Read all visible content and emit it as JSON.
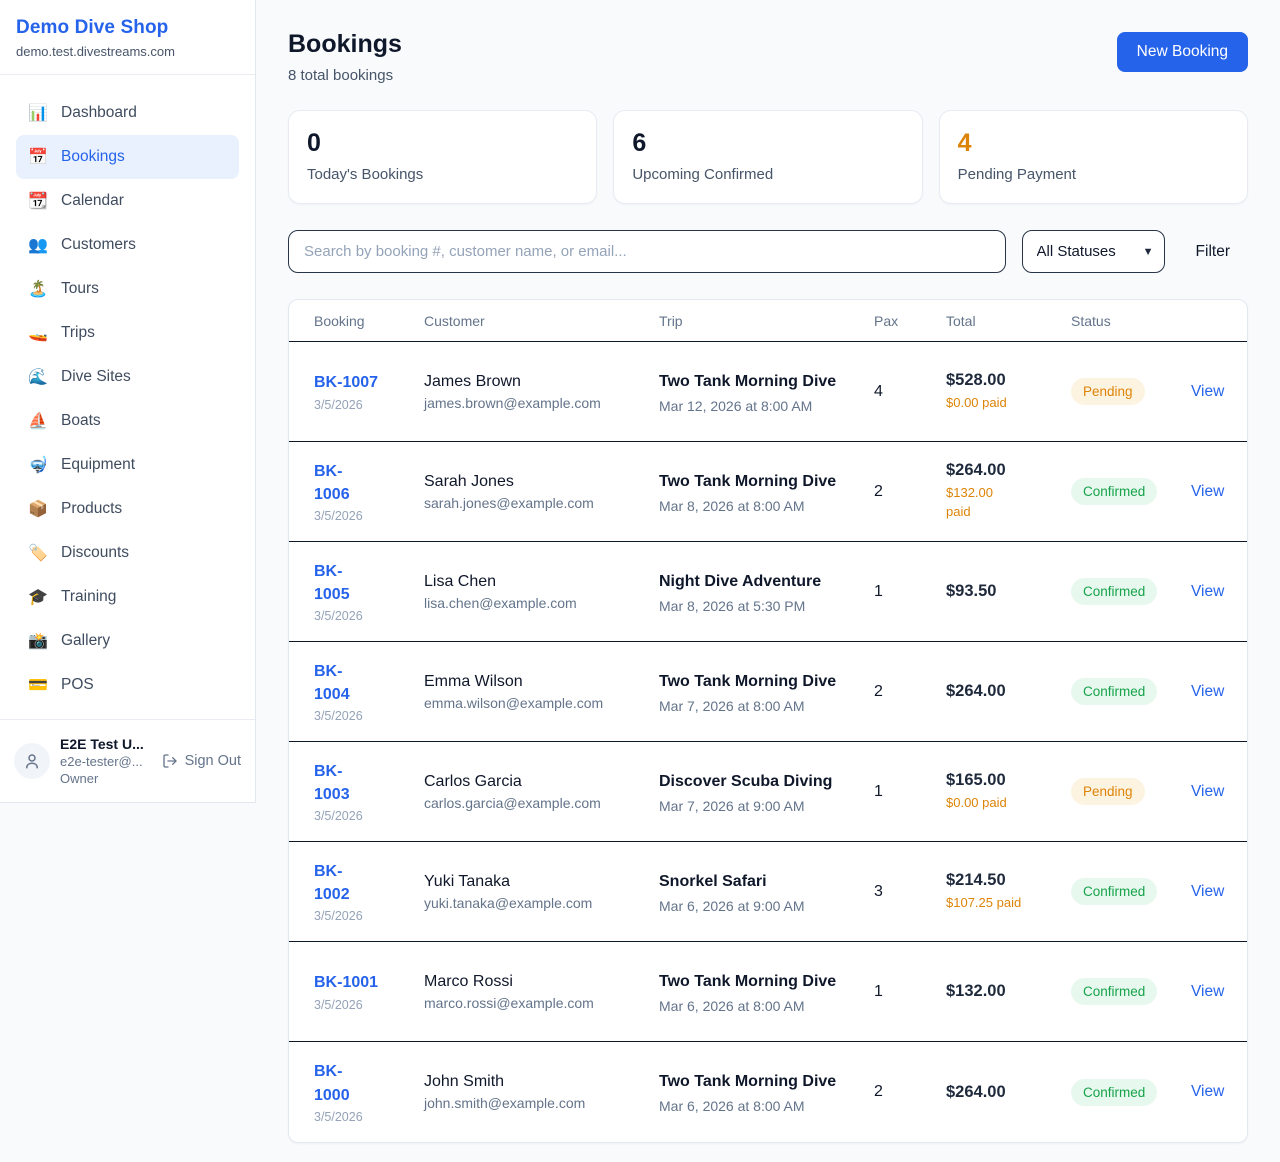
{
  "brand": {
    "name": "Demo Dive Shop",
    "domain": "demo.test.divestreams.com"
  },
  "sidebar": {
    "items": [
      {
        "icon": "📊",
        "icon_name": "bar-chart-icon",
        "label": "Dashboard",
        "active": false
      },
      {
        "icon": "📅",
        "icon_name": "calendar-icon",
        "label": "Bookings",
        "active": true
      },
      {
        "icon": "📆",
        "icon_name": "tear-off-calendar-icon",
        "label": "Calendar",
        "active": false
      },
      {
        "icon": "👥",
        "icon_name": "people-icon",
        "label": "Customers",
        "active": false
      },
      {
        "icon": "🏝️",
        "icon_name": "island-icon",
        "label": "Tours",
        "active": false
      },
      {
        "icon": "🚤",
        "icon_name": "speedboat-icon",
        "label": "Trips",
        "active": false
      },
      {
        "icon": "🌊",
        "icon_name": "wave-icon",
        "label": "Dive Sites",
        "active": false
      },
      {
        "icon": "⛵",
        "icon_name": "sailboat-icon",
        "label": "Boats",
        "active": false
      },
      {
        "icon": "🤿",
        "icon_name": "diving-mask-icon",
        "label": "Equipment",
        "active": false
      },
      {
        "icon": "📦",
        "icon_name": "package-icon",
        "label": "Products",
        "active": false
      },
      {
        "icon": "🏷️",
        "icon_name": "label-icon",
        "label": "Discounts",
        "active": false
      },
      {
        "icon": "🎓",
        "icon_name": "graduation-cap-icon",
        "label": "Training",
        "active": false
      },
      {
        "icon": "📸",
        "icon_name": "camera-icon",
        "label": "Gallery",
        "active": false
      },
      {
        "icon": "💳",
        "icon_name": "credit-card-icon",
        "label": "POS",
        "active": false
      }
    ]
  },
  "user": {
    "name": "E2E Test U...",
    "email": "e2e-tester@...",
    "role": "Owner",
    "sign_out_label": "Sign Out"
  },
  "header": {
    "title": "Bookings",
    "subtitle": "8 total bookings",
    "new_booking_label": "New Booking"
  },
  "stats": [
    {
      "value": "0",
      "label": "Today's Bookings",
      "accent": false
    },
    {
      "value": "6",
      "label": "Upcoming Confirmed",
      "accent": false
    },
    {
      "value": "4",
      "label": "Pending Payment",
      "accent": true
    }
  ],
  "filters": {
    "search_placeholder": "Search by booking #, customer name, or email...",
    "search_value": "",
    "status_selected": "All Statuses",
    "status_options": [
      "All Statuses"
    ],
    "filter_label": "Filter"
  },
  "colors": {
    "accent_blue": "#2563eb",
    "warning_orange": "#dd8408",
    "confirmed_green": "#16a34a",
    "pending_bg": "#fdf3e1",
    "confirmed_bg": "#e7f8ee"
  },
  "table": {
    "columns": [
      "Booking",
      "Customer",
      "Trip",
      "Pax",
      "Total",
      "Status"
    ],
    "view_label": "View",
    "rows": [
      {
        "number": "BK-1007",
        "number_two_lines": false,
        "date": "3/5/2026",
        "customer": "James Brown",
        "email": "james.brown@example.com",
        "trip": "Two Tank Morning Dive",
        "trip_time": "Mar 12, 2026 at 8:00 AM",
        "pax": "4",
        "total": "$528.00",
        "paid": "$0.00 paid",
        "paid_two_lines": false,
        "status": "Pending"
      },
      {
        "number": "BK-1006",
        "number_two_lines": true,
        "date": "3/5/2026",
        "customer": "Sarah Jones",
        "email": "sarah.jones@example.com",
        "trip": "Two Tank Morning Dive",
        "trip_time": "Mar 8, 2026 at 8:00 AM",
        "pax": "2",
        "total": "$264.00",
        "paid": "$132.00 paid",
        "paid_two_lines": true,
        "status": "Confirmed"
      },
      {
        "number": "BK-1005",
        "number_two_lines": true,
        "date": "3/5/2026",
        "customer": "Lisa Chen",
        "email": "lisa.chen@example.com",
        "trip": "Night Dive Adventure",
        "trip_time": "Mar 8, 2026 at 5:30 PM",
        "pax": "1",
        "total": "$93.50",
        "paid": "",
        "paid_two_lines": false,
        "status": "Confirmed"
      },
      {
        "number": "BK-1004",
        "number_two_lines": true,
        "date": "3/5/2026",
        "customer": "Emma Wilson",
        "email": "emma.wilson@example.com",
        "trip": "Two Tank Morning Dive",
        "trip_time": "Mar 7, 2026 at 8:00 AM",
        "pax": "2",
        "total": "$264.00",
        "paid": "",
        "paid_two_lines": false,
        "status": "Confirmed"
      },
      {
        "number": "BK-1003",
        "number_two_lines": true,
        "date": "3/5/2026",
        "customer": "Carlos Garcia",
        "email": "carlos.garcia@example.com",
        "trip": "Discover Scuba Diving",
        "trip_time": "Mar 7, 2026 at 9:00 AM",
        "pax": "1",
        "total": "$165.00",
        "paid": "$0.00 paid",
        "paid_two_lines": false,
        "status": "Pending"
      },
      {
        "number": "BK-1002",
        "number_two_lines": true,
        "date": "3/5/2026",
        "customer": "Yuki Tanaka",
        "email": "yuki.tanaka@example.com",
        "trip": "Snorkel Safari",
        "trip_time": "Mar 6, 2026 at 9:00 AM",
        "pax": "3",
        "total": "$214.50",
        "paid": "$107.25 paid",
        "paid_two_lines": false,
        "status": "Confirmed"
      },
      {
        "number": "BK-1001",
        "number_two_lines": false,
        "date": "3/5/2026",
        "customer": "Marco Rossi",
        "email": "marco.rossi@example.com",
        "trip": "Two Tank Morning Dive",
        "trip_time": "Mar 6, 2026 at 8:00 AM",
        "pax": "1",
        "total": "$132.00",
        "paid": "",
        "paid_two_lines": false,
        "status": "Confirmed"
      },
      {
        "number": "BK-1000",
        "number_two_lines": true,
        "date": "3/5/2026",
        "customer": "John Smith",
        "email": "john.smith@example.com",
        "trip": "Two Tank Morning Dive",
        "trip_time": "Mar 6, 2026 at 8:00 AM",
        "pax": "2",
        "total": "$264.00",
        "paid": "",
        "paid_two_lines": false,
        "status": "Confirmed"
      }
    ]
  }
}
